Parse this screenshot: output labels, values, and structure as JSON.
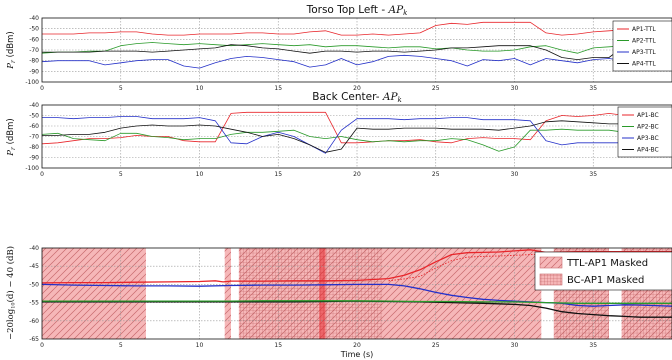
{
  "chart_data": [
    {
      "type": "line",
      "title": "Torso Top Left  - AP_k",
      "title_text": "Torso Top Left  - ",
      "title_math": "AP",
      "title_sub": "k",
      "ylabel": "P_r (dBm)",
      "ylabel_main": "P",
      "ylabel_sub": "r",
      "ylabel_unit": " (dBm)",
      "xlim": [
        0,
        40
      ],
      "ylim": [
        -100,
        -40
      ],
      "xticks": [
        0,
        5,
        10,
        15,
        20,
        25,
        30,
        35
      ],
      "yticks": [
        "-100",
        "-90",
        "-80",
        "-70",
        "-60",
        "-50",
        "-40"
      ],
      "legend_position": "top-right",
      "grid": true,
      "series": [
        {
          "name": "AP1-TTL",
          "color": "#e8262b",
          "x": [
            0,
            1,
            2,
            3,
            4,
            5,
            6,
            7,
            8,
            9,
            10,
            11,
            12,
            13,
            14,
            15,
            16,
            17,
            18,
            19,
            20,
            21,
            22,
            23,
            24,
            25,
            26,
            27,
            28,
            29,
            30,
            31,
            32,
            33,
            34,
            35,
            36,
            37,
            38,
            39,
            40
          ],
          "y": [
            -55,
            -55,
            -55,
            -54,
            -54,
            -53,
            -53,
            -55,
            -56,
            -56,
            -55,
            -55,
            -55,
            -54,
            -54,
            -55,
            -55,
            -53,
            -52,
            -56,
            -56,
            -55,
            -56,
            -55,
            -54,
            -47,
            -45,
            -46,
            -44,
            -44,
            -44,
            -44,
            -54,
            -56,
            -55,
            -53,
            -52,
            -51,
            -52,
            -53,
            -53
          ]
        },
        {
          "name": "AP2-TTL",
          "color": "#2a9a2a",
          "x": [
            0,
            1,
            2,
            3,
            4,
            5,
            6,
            7,
            8,
            9,
            10,
            11,
            12,
            13,
            14,
            15,
            16,
            17,
            18,
            19,
            20,
            21,
            22,
            23,
            24,
            25,
            26,
            27,
            28,
            29,
            30,
            31,
            32,
            33,
            34,
            35,
            36,
            37,
            38,
            39,
            40
          ],
          "y": [
            -73,
            -72,
            -72,
            -71,
            -71,
            -66,
            -64,
            -63,
            -64,
            -65,
            -64,
            -65,
            -66,
            -65,
            -64,
            -65,
            -66,
            -65,
            -67,
            -66,
            -66,
            -67,
            -68,
            -67,
            -67,
            -69,
            -68,
            -70,
            -71,
            -71,
            -70,
            -67,
            -66,
            -70,
            -73,
            -68,
            -67,
            -66,
            -66,
            -67,
            -68
          ]
        },
        {
          "name": "AP3-TTL",
          "color": "#2430c8",
          "x": [
            0,
            1,
            2,
            3,
            4,
            5,
            6,
            7,
            8,
            9,
            10,
            11,
            12,
            13,
            14,
            15,
            16,
            17,
            18,
            19,
            20,
            21,
            22,
            23,
            24,
            25,
            26,
            27,
            28,
            29,
            30,
            31,
            32,
            33,
            34,
            35,
            36,
            37,
            38,
            39,
            40
          ],
          "y": [
            -81,
            -80,
            -80,
            -80,
            -84,
            -82,
            -80,
            -79,
            -79,
            -85,
            -87,
            -82,
            -78,
            -76,
            -77,
            -79,
            -81,
            -86,
            -84,
            -78,
            -84,
            -81,
            -76,
            -75,
            -76,
            -78,
            -80,
            -85,
            -79,
            -80,
            -78,
            -84,
            -78,
            -80,
            -82,
            -79,
            -78,
            -80,
            -80,
            -80,
            -80
          ]
        },
        {
          "name": "AP4-TTL",
          "color": "#111111",
          "x": [
            0,
            1,
            2,
            3,
            4,
            5,
            6,
            7,
            8,
            9,
            10,
            11,
            12,
            13,
            14,
            15,
            16,
            17,
            18,
            19,
            20,
            21,
            22,
            23,
            24,
            25,
            26,
            27,
            28,
            29,
            30,
            31,
            32,
            33,
            34,
            35,
            36,
            37,
            38,
            39,
            40
          ],
          "y": [
            -72,
            -72,
            -72,
            -72,
            -71,
            -71,
            -71,
            -72,
            -71,
            -70,
            -69,
            -68,
            -65,
            -66,
            -68,
            -69,
            -71,
            -73,
            -71,
            -71,
            -72,
            -71,
            -71,
            -72,
            -71,
            -70,
            -68,
            -68,
            -67,
            -66,
            -66,
            -66,
            -70,
            -77,
            -79,
            -77,
            -77,
            -66,
            -65,
            -65,
            -65
          ]
        }
      ]
    },
    {
      "type": "line",
      "title": "Back Center- AP_k",
      "title_text": "Back Center- ",
      "title_math": "AP",
      "title_sub": "k",
      "ylabel": "P_r (dBm)",
      "ylabel_main": "P",
      "ylabel_sub": "r",
      "ylabel_unit": " (dBm)",
      "xlim": [
        0,
        40
      ],
      "ylim": [
        -100,
        -40
      ],
      "xticks": [
        0,
        5,
        10,
        15,
        20,
        25,
        30,
        35
      ],
      "yticks": [
        "-100",
        "-90",
        "-80",
        "-70",
        "-60",
        "-50",
        "-40"
      ],
      "legend_position": "top-right",
      "grid": true,
      "series": [
        {
          "name": "AP1-BC",
          "color": "#e8262b",
          "x": [
            0,
            1,
            2,
            3,
            4,
            5,
            6,
            7,
            8,
            9,
            10,
            11,
            12,
            13,
            14,
            15,
            16,
            17,
            18,
            19,
            20,
            21,
            22,
            23,
            24,
            25,
            26,
            27,
            28,
            29,
            30,
            31,
            32,
            33,
            34,
            35,
            36,
            37,
            38,
            39,
            40
          ],
          "y": [
            -77,
            -76,
            -74,
            -72,
            -72,
            -71,
            -69,
            -70,
            -70,
            -74,
            -75,
            -75,
            -48,
            -47,
            -47,
            -47,
            -47,
            -47,
            -47,
            -76,
            -76,
            -75,
            -74,
            -74,
            -73,
            -75,
            -76,
            -72,
            -71,
            -72,
            -72,
            -73,
            -55,
            -50,
            -51,
            -50,
            -48,
            -50,
            -77,
            -76,
            -75
          ]
        },
        {
          "name": "AP2-BC",
          "color": "#2a9a2a",
          "x": [
            0,
            1,
            2,
            3,
            4,
            5,
            6,
            7,
            8,
            9,
            10,
            11,
            12,
            13,
            14,
            15,
            16,
            17,
            18,
            19,
            20,
            21,
            22,
            23,
            24,
            25,
            26,
            27,
            28,
            29,
            30,
            31,
            32,
            33,
            34,
            35,
            36,
            37,
            38,
            39,
            40
          ],
          "y": [
            -68,
            -67,
            -72,
            -73,
            -74,
            -67,
            -67,
            -70,
            -71,
            -73,
            -72,
            -72,
            -68,
            -66,
            -66,
            -65,
            -64,
            -70,
            -72,
            -70,
            -73,
            -75,
            -74,
            -75,
            -74,
            -74,
            -72,
            -73,
            -78,
            -84,
            -80,
            -64,
            -64,
            -63,
            -64,
            -64,
            -64,
            -66,
            -70,
            -70,
            -72
          ]
        },
        {
          "name": "AP3-BC",
          "color": "#2430c8",
          "x": [
            0,
            1,
            2,
            3,
            4,
            5,
            6,
            7,
            8,
            9,
            10,
            11,
            12,
            13,
            14,
            15,
            16,
            17,
            18,
            19,
            20,
            21,
            22,
            23,
            24,
            25,
            26,
            27,
            28,
            29,
            30,
            31,
            32,
            33,
            34,
            35,
            36,
            37,
            38,
            39,
            40
          ],
          "y": [
            -52,
            -52,
            -53,
            -52,
            -52,
            -51,
            -51,
            -53,
            -53,
            -53,
            -52,
            -55,
            -76,
            -77,
            -70,
            -66,
            -70,
            -78,
            -86,
            -64,
            -53,
            -53,
            -53,
            -54,
            -53,
            -53,
            -52,
            -52,
            -54,
            -54,
            -54,
            -55,
            -74,
            -78,
            -76,
            -76,
            -76,
            -76,
            -76,
            -76,
            -76
          ]
        },
        {
          "name": "AP4-BC",
          "color": "#111111",
          "x": [
            0,
            1,
            2,
            3,
            4,
            5,
            6,
            7,
            8,
            9,
            10,
            11,
            12,
            13,
            14,
            15,
            16,
            17,
            18,
            19,
            20,
            21,
            22,
            23,
            24,
            25,
            26,
            27,
            28,
            29,
            30,
            31,
            32,
            33,
            34,
            35,
            36,
            37,
            38,
            39,
            40
          ],
          "y": [
            -69,
            -69,
            -68,
            -68,
            -66,
            -62,
            -60,
            -59,
            -60,
            -60,
            -59,
            -60,
            -63,
            -66,
            -70,
            -68,
            -72,
            -78,
            -85,
            -82,
            -62,
            -63,
            -63,
            -62,
            -62,
            -62,
            -63,
            -63,
            -63,
            -64,
            -62,
            -60,
            -56,
            -55,
            -56,
            -57,
            -58,
            -58,
            -61,
            -62,
            -64
          ]
        }
      ]
    },
    {
      "type": "line",
      "title": "",
      "ylabel": "-20log10(d) - 40 (dB)",
      "ylabel_text": "−20log",
      "ylabel_sub": "10",
      "ylabel_rest": "(d) − 40  (dB)",
      "xlabel": "Time (s)",
      "xlim": [
        0,
        40
      ],
      "ylim": [
        -65,
        -40
      ],
      "xticks": [
        0,
        5,
        10,
        15,
        20,
        25,
        30,
        35
      ],
      "yticks": [
        "-65",
        "-60",
        "-55",
        "-50",
        "-45",
        "-40"
      ],
      "legend_position": "top-right",
      "grid": true,
      "masks": [
        {
          "name": "TTL-AP1 Masked",
          "color": "#f08a8d",
          "hatch": "diagonal",
          "intervals": [
            [
              0,
              6.6
            ],
            [
              11.6,
              12.0
            ],
            [
              12.5,
              31.7
            ],
            [
              32.5,
              36.0
            ],
            [
              36.8,
              40
            ]
          ]
        },
        {
          "name": "BC-AP1 Masked",
          "color": "#f08a8d",
          "hatch": "grid",
          "intervals": [
            [
              12.5,
              21.6
            ],
            [
              32.5,
              36.0
            ],
            [
              36.8,
              40
            ]
          ]
        }
      ],
      "series": [
        {
          "name": "",
          "color": "#e8262b",
          "x": [
            0,
            2,
            4,
            6,
            8,
            10,
            11,
            11.5,
            12,
            14,
            16,
            18,
            20,
            22,
            23,
            24,
            25,
            26,
            27,
            28,
            29,
            30,
            31,
            32,
            34,
            36,
            38,
            40
          ],
          "y": [
            -49.6,
            -49.5,
            -49.5,
            -49.4,
            -49.3,
            -49.2,
            -49.0,
            -49.3,
            -49.1,
            -49.1,
            -49.0,
            -49.0,
            -48.9,
            -48.4,
            -47.5,
            -46,
            -43.8,
            -41.8,
            -41.3,
            -41.2,
            -41.1,
            -40.8,
            -40.5,
            -41.2,
            -41,
            -41,
            -41,
            -41
          ]
        },
        {
          "name": "",
          "color": "#e8262b",
          "dashed": true,
          "x": [
            22,
            23,
            24,
            25,
            26,
            27,
            28,
            29,
            30,
            31,
            32,
            34,
            36,
            38,
            40
          ],
          "y": [
            -49,
            -48.5,
            -47.8,
            -45.5,
            -43.5,
            -42.5,
            -42.3,
            -42.2,
            -42.0,
            -41.8,
            -41.8,
            -41.8,
            -41.8,
            -41.8,
            -41.8
          ]
        },
        {
          "name": "",
          "color": "#2430c8",
          "x": [
            0,
            2,
            4,
            6,
            8,
            10,
            12,
            14,
            16,
            18,
            20,
            22,
            23,
            24,
            25,
            26,
            27,
            28,
            29,
            30,
            31,
            32,
            33,
            34,
            35,
            36,
            37,
            38,
            40
          ],
          "y": [
            -50.0,
            -50.2,
            -50.3,
            -50.4,
            -50.4,
            -50.5,
            -50.3,
            -50.2,
            -50.2,
            -50.1,
            -50.0,
            -50.0,
            -50.4,
            -51.2,
            -52.2,
            -53.0,
            -53.6,
            -54.1,
            -54.4,
            -54.6,
            -54.8,
            -55.0,
            -55.2,
            -55.8,
            -56.0,
            -55.8,
            -55.6,
            -55.7,
            -56.0
          ]
        },
        {
          "name": "",
          "color": "#111111",
          "x": [
            0,
            2,
            4,
            6,
            8,
            10,
            12,
            14,
            16,
            18,
            20,
            22,
            24,
            26,
            28,
            30,
            31,
            32,
            33,
            34,
            35,
            36,
            37,
            38,
            40
          ],
          "y": [
            -54.8,
            -54.8,
            -54.8,
            -54.8,
            -54.8,
            -54.8,
            -54.8,
            -54.8,
            -54.8,
            -54.7,
            -54.6,
            -54.7,
            -54.8,
            -55.0,
            -55.2,
            -55.5,
            -55.8,
            -56.5,
            -57.5,
            -58.0,
            -58.3,
            -58.6,
            -58.8,
            -59.0,
            -59.0
          ]
        },
        {
          "name": "",
          "color": "#2a9a2a",
          "x": [
            0,
            2,
            4,
            6,
            8,
            10,
            12,
            14,
            16,
            18,
            20,
            22,
            24,
            26,
            28,
            30,
            32,
            34,
            36,
            38,
            40
          ],
          "y": [
            -54.6,
            -54.6,
            -54.6,
            -54.6,
            -54.6,
            -54.6,
            -54.6,
            -54.5,
            -54.5,
            -54.5,
            -54.5,
            -54.6,
            -54.7,
            -54.7,
            -54.8,
            -54.8,
            -55.0,
            -55.2,
            -55.2,
            -55.2,
            -55.2
          ]
        }
      ]
    }
  ]
}
